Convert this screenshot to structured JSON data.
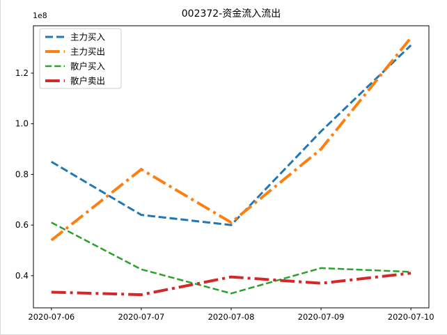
{
  "window": {
    "background": "#ffffff",
    "edge_color": "#d9d9d9"
  },
  "chart_data": {
    "type": "line",
    "title": "002372-资金流入流出",
    "offset_label": "1e8",
    "unit_multiplier": 100000000,
    "categories": [
      "2020-07-06",
      "2020-07-07",
      "2020-07-08",
      "2020-07-09",
      "2020-07-10"
    ],
    "y_ticks": [
      0.4,
      0.6,
      0.8,
      1.0,
      1.2
    ],
    "xlim": [
      -0.2,
      4.2
    ],
    "ylim": [
      0.273,
      1.387
    ],
    "grid": false,
    "axis_color": "#000000",
    "series": [
      {
        "name": "主力买入",
        "color": "#1f77b4",
        "style": "dashed",
        "width": 3,
        "values": [
          0.85,
          0.64,
          0.6,
          0.97,
          1.31
        ]
      },
      {
        "name": "主力买出",
        "color": "#ff7f0e",
        "style": "dashdot",
        "width": 4,
        "values": [
          0.54,
          0.82,
          0.61,
          0.9,
          1.34
        ]
      },
      {
        "name": "散户买入",
        "color": "#2ca02c",
        "style": "dashed",
        "width": 2.5,
        "values": [
          0.61,
          0.425,
          0.33,
          0.43,
          0.415
        ]
      },
      {
        "name": "散户卖出",
        "color": "#d62728",
        "style": "dashdot",
        "width": 4,
        "values": [
          0.335,
          0.325,
          0.395,
          0.37,
          0.41
        ]
      }
    ],
    "legend": {
      "position": "upper left",
      "border_color": "#cccccc",
      "background": "rgba(255,255,255,0.85)"
    }
  }
}
